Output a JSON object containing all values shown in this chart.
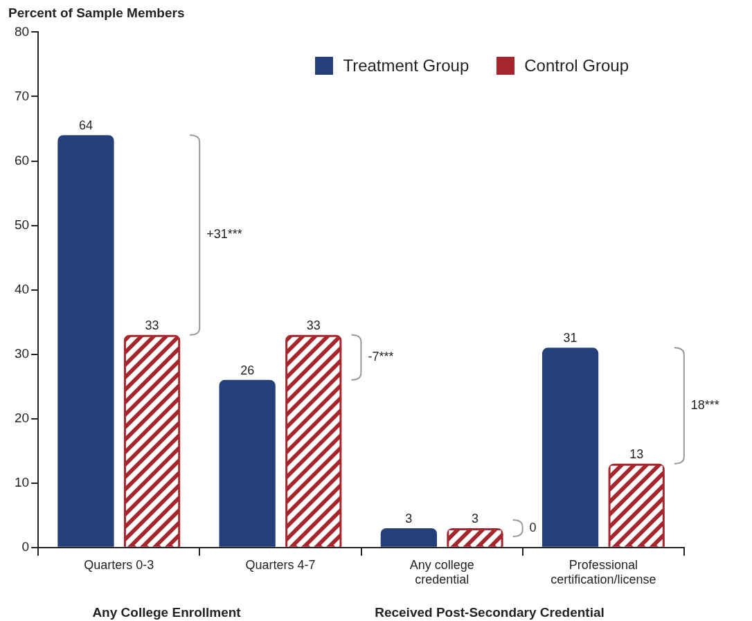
{
  "chart_data": {
    "type": "bar",
    "ylabel": "Percent of Sample Members",
    "categories": [
      "Quarters 0-3",
      "Quarters 4-7",
      "Any college credential",
      "Professional certification/license"
    ],
    "series": [
      {
        "name": "Treatment Group",
        "color": "#253f7b",
        "values": [
          64,
          26,
          3,
          31
        ]
      },
      {
        "name": "Control Group",
        "color": "#a5262c",
        "values": [
          33,
          33,
          3,
          13
        ]
      }
    ],
    "ylim": [
      0,
      80
    ],
    "yticks": [
      0,
      10,
      20,
      30,
      40,
      50,
      60,
      70,
      80
    ],
    "grid": false,
    "legend": "top right",
    "data_labels": true,
    "annotations": [
      "+31***",
      "-7***",
      "0",
      "18***",
      "Any College Enrollment",
      "Received Post-Secondary Credential"
    ]
  }
}
